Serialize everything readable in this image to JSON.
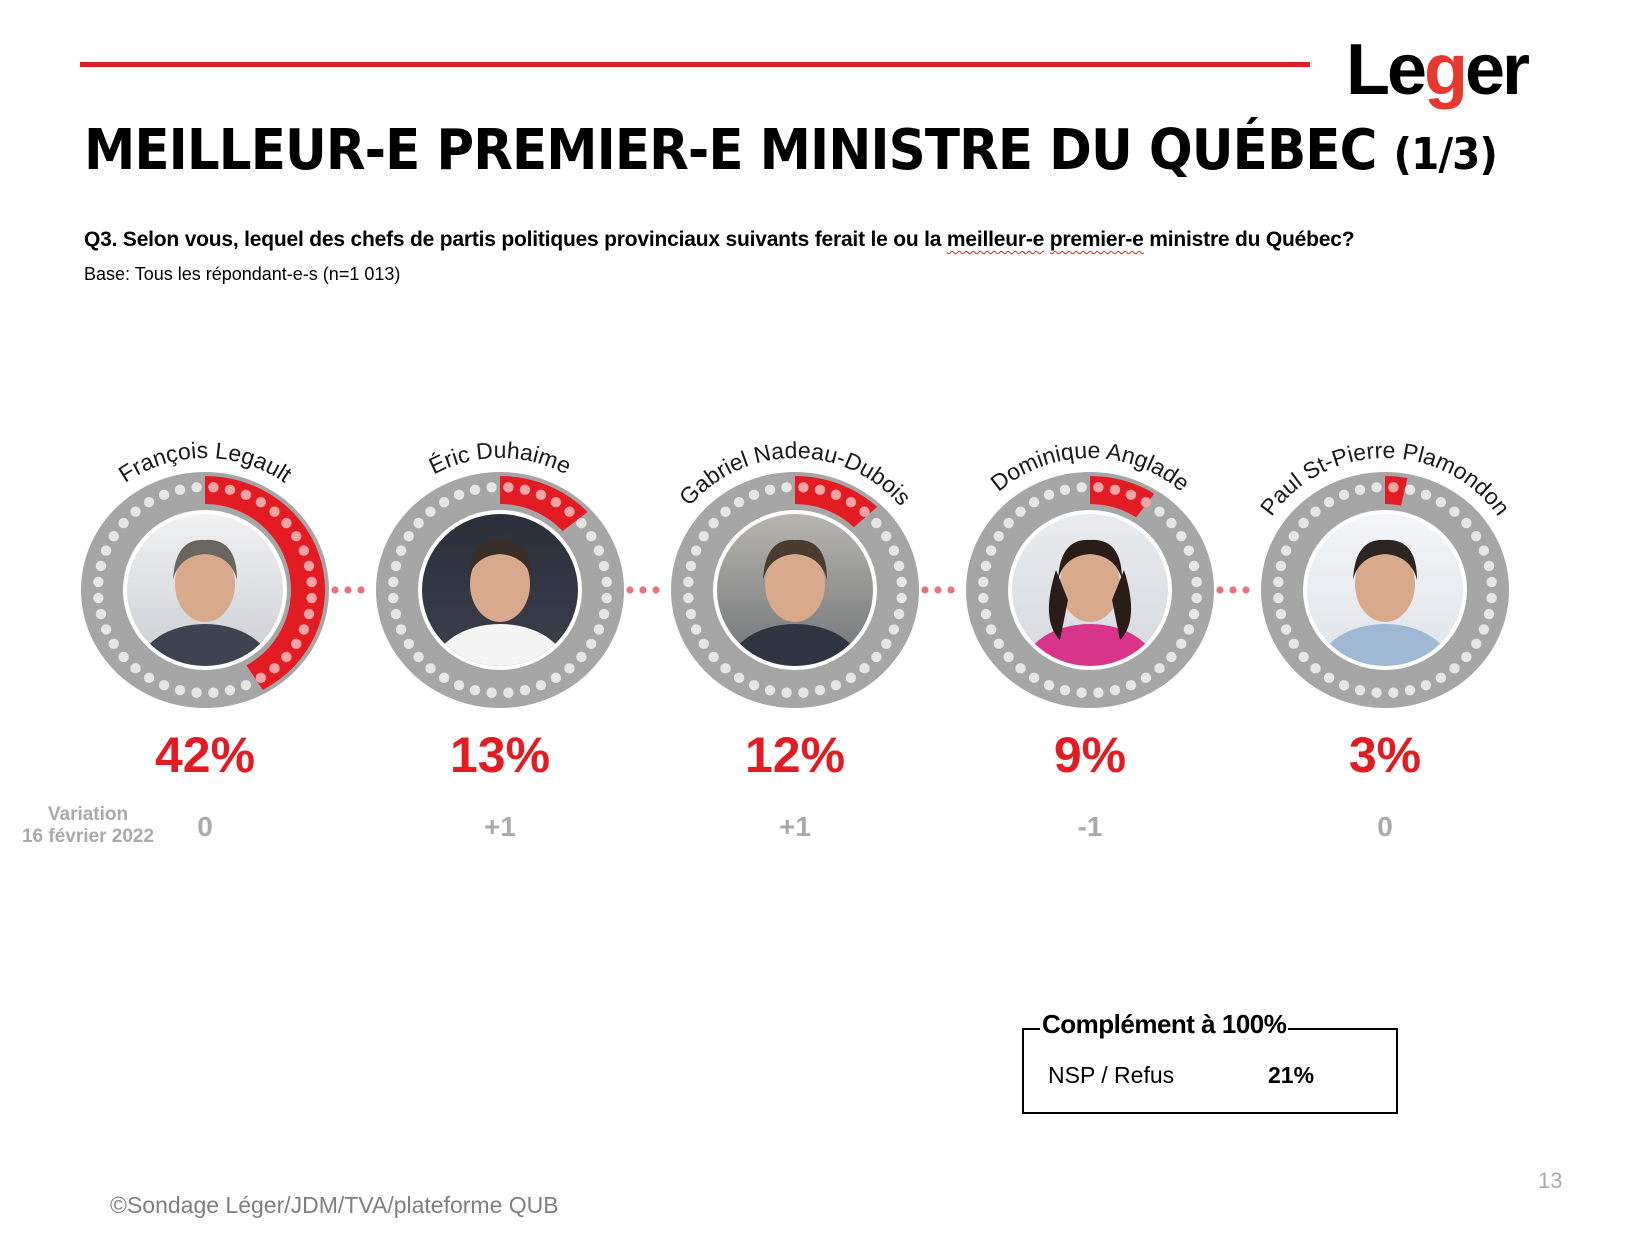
{
  "header": {
    "logo_text_before": "Le",
    "logo_text_accent": "g",
    "logo_text_after": "er",
    "title": "MEILLEUR-E PREMIER-E MINISTRE DU QUÉBEC",
    "title_part": "(1/3)",
    "question_prefix": "Q3. Selon vous, lequel des chefs de partis politiques provinciaux suivants ferait le ou la ",
    "question_highlight_1": "meilleur-e",
    "question_space": " ",
    "question_highlight_2": "premier-e",
    "question_suffix": " ministre du Québec?",
    "base": "Base: Tous les répondant-e-s (n=1 013)"
  },
  "colors": {
    "accent_red": "#e31b23",
    "ring_gray": "#a6a6a6",
    "dot_light": "#e6e6e6",
    "dot_on_red": "#f4a3a6",
    "variation_gray": "#aaaaaa"
  },
  "variation": {
    "label_line1": "Variation",
    "label_line2": "16 février 2022"
  },
  "chart_data": {
    "type": "radial-gauge",
    "title": "MEILLEUR-E PREMIER-E MINISTRE DU QUÉBEC (1/3)",
    "unit": "%",
    "categories": [
      "François Legault",
      "Éric Duhaime",
      "Gabriel Nadeau-Dubois",
      "Dominique Anglade",
      "Paul St-Pierre Plamondon"
    ],
    "values": [
      42,
      13,
      12,
      9,
      3
    ],
    "value_labels": [
      "42%",
      "13%",
      "12%",
      "9%",
      "3%"
    ],
    "variation": [
      "0",
      "+1",
      "+1",
      "-1",
      "0"
    ],
    "variation_label": "Variation 16 février 2022",
    "gauge_max": 100
  },
  "complement": {
    "title": "Complément à 100%",
    "label": "NSP / Refus",
    "value": "21%"
  },
  "page_number": "13",
  "footer": "©Sondage Léger/JDM/TVA/plateforme QUB"
}
